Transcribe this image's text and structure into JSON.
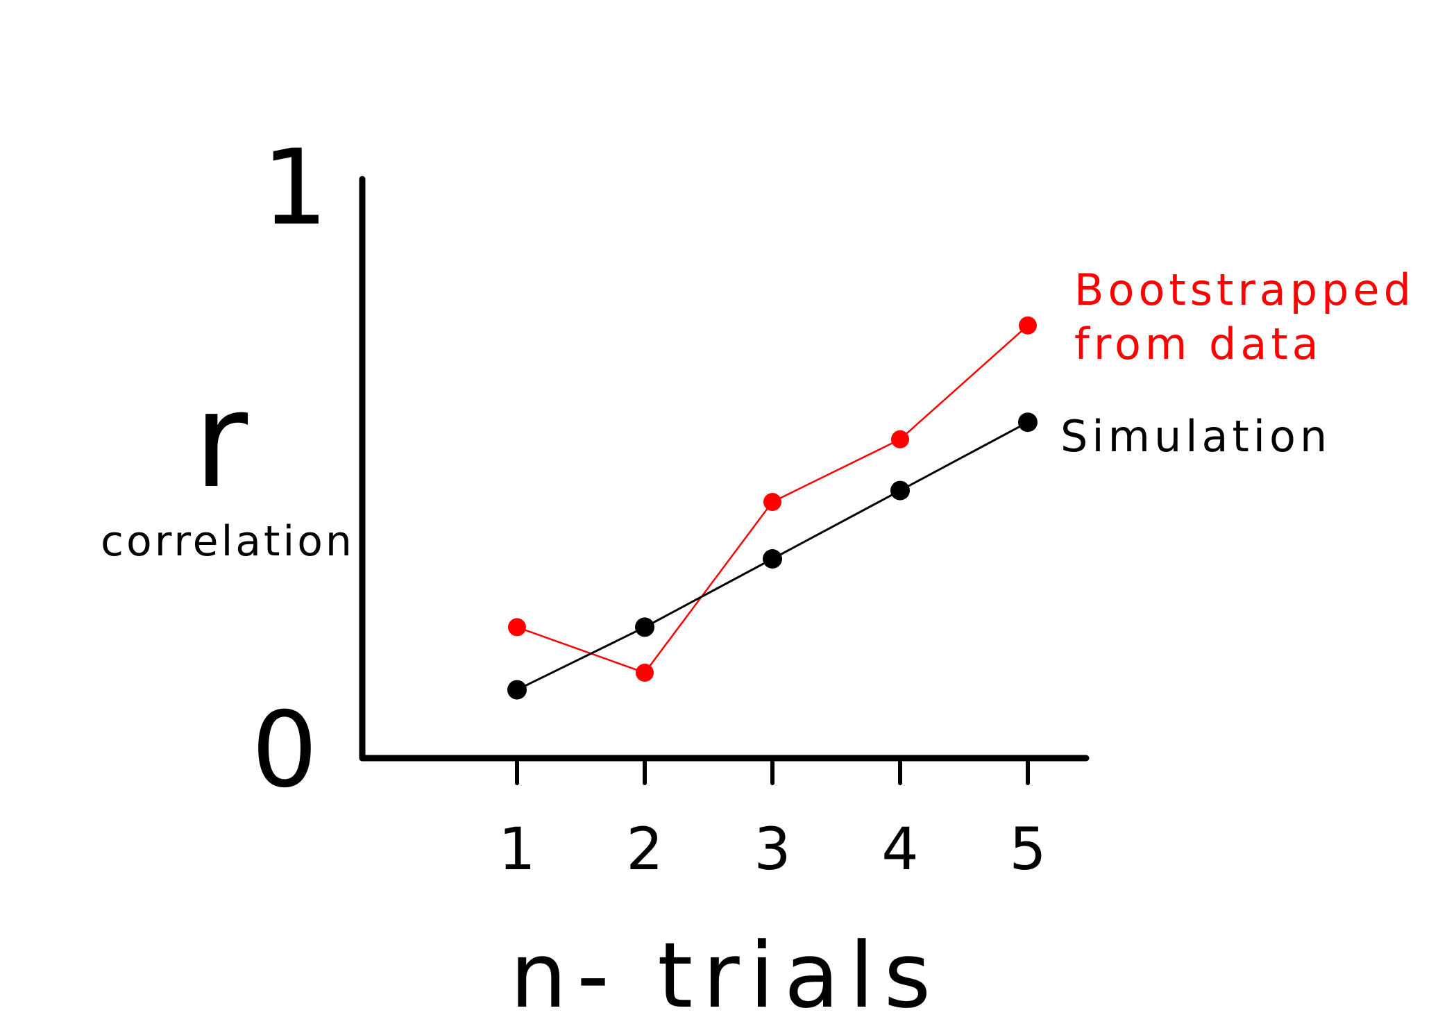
{
  "chart_data": {
    "type": "line",
    "x": [
      1,
      2,
      3,
      4,
      5
    ],
    "xticks": [
      "1",
      "2",
      "3",
      "4",
      "5"
    ],
    "xlabel": "n- trials",
    "ylabel": "r",
    "ylabel_sub": "correlation",
    "ylim": [
      0,
      1
    ],
    "yticks": [
      "0",
      "1"
    ],
    "grid": false,
    "legend": "right",
    "series": [
      {
        "name": "Bootstrapped from data",
        "name_lines": [
          "Bootstrapped",
          "from data"
        ],
        "color": "#ff0000",
        "values": [
          0.23,
          0.15,
          0.45,
          0.56,
          0.76
        ]
      },
      {
        "name": "Simulation",
        "name_lines": [
          "Simulation"
        ],
        "color": "#000000",
        "values": [
          0.12,
          0.23,
          0.35,
          0.47,
          0.59
        ]
      }
    ]
  }
}
